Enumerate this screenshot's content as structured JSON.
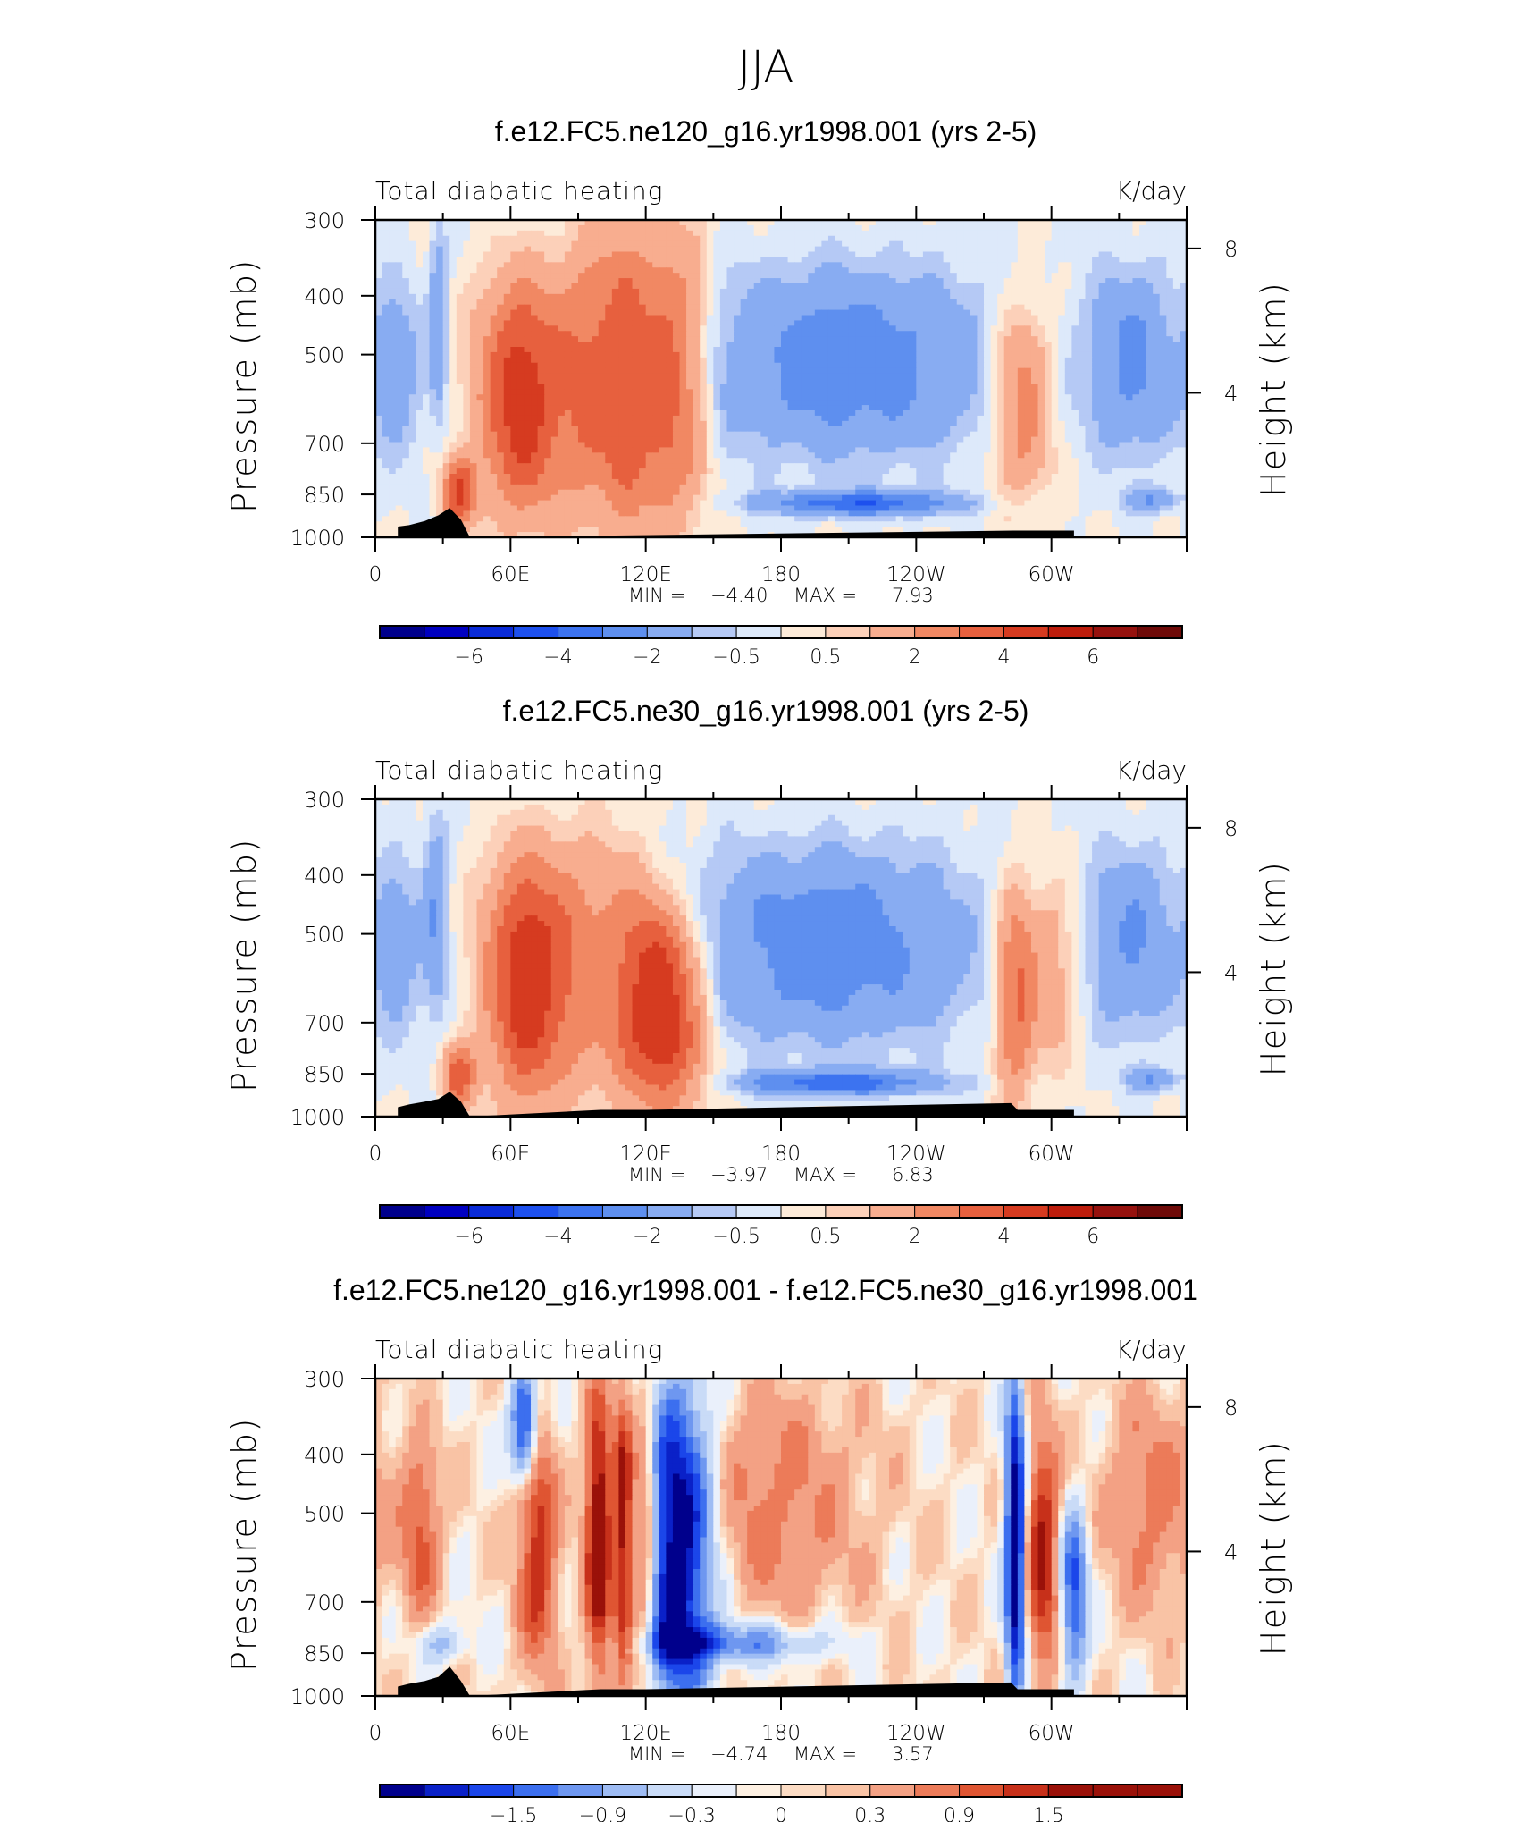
{
  "page": {
    "title": "JJA"
  },
  "colors": {
    "field_palette": [
      "#00008c",
      "#0000c0",
      "#0a2bd8",
      "#1d50ee",
      "#3c73f0",
      "#5e8fef",
      "#88acf2",
      "#b5c9f5",
      "#dde9fa",
      "#fdebd9",
      "#fcd0b9",
      "#f8ad8f",
      "#f18863",
      "#e7603e",
      "#d63b20",
      "#bd1d0c",
      "#96120e",
      "#6e0a08"
    ],
    "diff_palette": [
      "#00008c",
      "#0a21c8",
      "#1b46ea",
      "#3c6fef",
      "#6e97f0",
      "#9ebcf4",
      "#c9dbf7",
      "#eaf0fb",
      "#fdf0e2",
      "#fcdcc4",
      "#f9c3a5",
      "#f3a184",
      "#ec7b59",
      "#df5532",
      "#c7301a",
      "#9a1109"
    ],
    "terrain": "#000000"
  },
  "axes": {
    "x_tick_labels": [
      "0",
      "60E",
      "120E",
      "180",
      "120W",
      "60W"
    ],
    "y_left_labels": [
      "300",
      "400",
      "500",
      "700",
      "850",
      "1000"
    ],
    "y_right_labels": [
      "8",
      "4"
    ],
    "y_left_title": "Pressure (mb)",
    "y_right_title": "Height (km)"
  },
  "chart_data": [
    {
      "type": "heatmap",
      "title": "f.e12.FC5.ne120_g16.yr1998.001 (yrs 2-5)",
      "left_label": "Total diabatic heating",
      "right_label": "K/day",
      "stats": {
        "min_label": "MIN =",
        "min": "-4.40",
        "max_label": "MAX =",
        "max": "7.93"
      },
      "xlim": [
        0,
        360
      ],
      "ylim_mb": [
        1000,
        300
      ],
      "colorbar": {
        "levels": [
          -7,
          -6,
          -5,
          -4,
          -3,
          -2,
          -1,
          -0.5,
          0,
          0.5,
          1,
          2,
          3,
          4,
          5,
          6,
          7
        ],
        "tick_labels": [
          "-6",
          "-4",
          "-2",
          "-0.5",
          "0.5",
          "2",
          "4",
          "6"
        ],
        "tick_values": [
          -6,
          -4,
          -2,
          -0.5,
          0.5,
          2,
          4,
          6
        ]
      },
      "features": [
        {
          "lon": 65,
          "width": 14,
          "amp": 4.6,
          "top": 390,
          "bottom": 880
        },
        {
          "lon": 95,
          "width": 10,
          "amp": 2.6,
          "top": 330,
          "bottom": 900
        },
        {
          "lon": 112,
          "width": 8,
          "amp": 3.4,
          "top": 330,
          "bottom": 930
        },
        {
          "lon": 128,
          "width": 7,
          "amp": 3.0,
          "top": 330,
          "bottom": 930
        },
        {
          "lon": 140,
          "width": 7,
          "amp": 2.0,
          "top": 330,
          "bottom": 900
        },
        {
          "lon": 37,
          "width": 5,
          "amp": 3.8,
          "top": 780,
          "bottom": 920
        },
        {
          "lon": 28,
          "width": 3,
          "amp": -1.8,
          "top": 320,
          "bottom": 620
        },
        {
          "lon": 210,
          "width": 45,
          "amp": -2.6,
          "top": 380,
          "bottom": 700
        },
        {
          "lon": 215,
          "width": 30,
          "amp": -3.8,
          "top": 880,
          "bottom": 40
        },
        {
          "lon": 287,
          "width": 9,
          "amp": 2.8,
          "top": 430,
          "bottom": 820
        },
        {
          "lon": 336,
          "width": 14,
          "amp": -2.2,
          "top": 380,
          "bottom": 700
        },
        {
          "lon": 345,
          "width": 8,
          "amp": -2.0,
          "top": 870,
          "bottom": 40
        },
        {
          "lon": 10,
          "width": 8,
          "amp": -1.4,
          "top": 400,
          "bottom": 700
        }
      ],
      "terrain": [
        [
          10,
          960
        ],
        [
          15,
          955
        ],
        [
          22,
          940
        ],
        [
          28,
          920
        ],
        [
          33,
          895
        ],
        [
          38,
          935
        ],
        [
          42,
          1000
        ],
        [
          283,
          975
        ],
        [
          290,
          975
        ],
        [
          300,
          975
        ],
        [
          305,
          975
        ],
        [
          310,
          975
        ],
        [
          310,
          1000
        ]
      ]
    },
    {
      "type": "heatmap",
      "title": "f.e12.FC5.ne30_g16.yr1998.001 (yrs 2-5)",
      "left_label": "Total diabatic heating",
      "right_label": "K/day",
      "stats": {
        "min_label": "MIN =",
        "min": "-3.97",
        "max_label": "MAX =",
        "max": "6.83"
      },
      "xlim": [
        0,
        360
      ],
      "ylim_mb": [
        1000,
        300
      ],
      "colorbar": {
        "levels": [
          -7,
          -6,
          -5,
          -4,
          -3,
          -2,
          -1,
          -0.5,
          0,
          0.5,
          1,
          2,
          3,
          4,
          5,
          6,
          7
        ],
        "tick_labels": [
          "-6",
          "-4",
          "-2",
          "-0.5",
          "0.5",
          "2",
          "4",
          "6"
        ],
        "tick_values": [
          -6,
          -4,
          -2,
          -0.5,
          0.5,
          2,
          4,
          6
        ]
      },
      "features": [
        {
          "lon": 66,
          "width": 13,
          "amp": 4.4,
          "top": 390,
          "bottom": 900
        },
        {
          "lon": 95,
          "width": 16,
          "amp": 2.2,
          "top": 360,
          "bottom": 880
        },
        {
          "lon": 132,
          "width": 11,
          "amp": 4.0,
          "top": 480,
          "bottom": 940
        },
        {
          "lon": 118,
          "width": 10,
          "amp": 2.4,
          "top": 420,
          "bottom": 900
        },
        {
          "lon": 37,
          "width": 5,
          "amp": 3.4,
          "top": 800,
          "bottom": 920
        },
        {
          "lon": 27,
          "width": 4,
          "amp": -1.8,
          "top": 330,
          "bottom": 660
        },
        {
          "lon": 200,
          "width": 45,
          "amp": -2.6,
          "top": 380,
          "bottom": 720
        },
        {
          "lon": 205,
          "width": 30,
          "amp": -3.6,
          "top": 880,
          "bottom": 40
        },
        {
          "lon": 284,
          "width": 6,
          "amp": 3.2,
          "top": 430,
          "bottom": 900
        },
        {
          "lon": 300,
          "width": 8,
          "amp": 1.8,
          "top": 430,
          "bottom": 780
        },
        {
          "lon": 336,
          "width": 14,
          "amp": -2.0,
          "top": 380,
          "bottom": 700
        },
        {
          "lon": 345,
          "width": 8,
          "amp": -2.0,
          "top": 870,
          "bottom": 40
        },
        {
          "lon": 10,
          "width": 8,
          "amp": -1.4,
          "top": 400,
          "bottom": 700
        }
      ],
      "terrain": [
        [
          10,
          965
        ],
        [
          15,
          955
        ],
        [
          22,
          945
        ],
        [
          28,
          935
        ],
        [
          33,
          910
        ],
        [
          38,
          945
        ],
        [
          42,
          1000
        ],
        [
          100,
          975
        ],
        [
          105,
          975
        ],
        [
          115,
          975
        ],
        [
          120,
          975
        ],
        [
          282,
          950
        ],
        [
          285,
          975
        ],
        [
          300,
          975
        ],
        [
          310,
          975
        ],
        [
          310,
          1000
        ]
      ]
    },
    {
      "type": "heatmap",
      "title": "f.e12.FC5.ne120_g16.yr1998.001 - f.e12.FC5.ne30_g16.yr1998.001",
      "left_label": "Total diabatic heating",
      "right_label": "K/day",
      "stats": {
        "min_label": "MIN =",
        "min": "-4.74",
        "max_label": "MAX =",
        "max": "3.57"
      },
      "xlim": [
        0,
        360
      ],
      "ylim_mb": [
        1000,
        300
      ],
      "colorbar": {
        "levels": [
          -2.1,
          -1.8,
          -1.5,
          -1.2,
          -0.9,
          -0.6,
          -0.3,
          -0.1,
          0,
          0.1,
          0.3,
          0.6,
          0.9,
          1.2,
          1.5,
          1.8,
          2.1
        ],
        "tick_labels": [
          "-1.5",
          "-0.9",
          "-0.3",
          "0",
          "0.3",
          "0.9",
          "1.5"
        ],
        "tick_values": [
          -1.5,
          -0.9,
          -0.3,
          0,
          0.3,
          0.9,
          1.5
        ]
      },
      "features": [
        {
          "lon": 66,
          "width": 4,
          "amp": -2.0,
          "top": 310,
          "bottom": 420
        },
        {
          "lon": 72,
          "width": 6,
          "amp": 1.4,
          "top": 380,
          "bottom": 850
        },
        {
          "lon": 99,
          "width": 4,
          "amp": 2.0,
          "top": 330,
          "bottom": 900
        },
        {
          "lon": 110,
          "width": 3,
          "amp": 1.8,
          "top": 330,
          "bottom": 900
        },
        {
          "lon": 120,
          "width": 4,
          "amp": 1.4,
          "top": 330,
          "bottom": 920
        },
        {
          "lon": 134,
          "width": 11,
          "amp": -2.6,
          "top": 320,
          "bottom": 980
        },
        {
          "lon": 158,
          "width": 28,
          "amp": -1.2,
          "top": 820,
          "bottom": 60
        },
        {
          "lon": 176,
          "width": 28,
          "amp": 0.7,
          "top": 330,
          "bottom": 700
        },
        {
          "lon": 284,
          "width": 3,
          "amp": -2.6,
          "top": 320,
          "bottom": 980
        },
        {
          "lon": 296,
          "width": 5,
          "amp": 1.5,
          "top": 380,
          "bottom": 880
        },
        {
          "lon": 310,
          "width": 4,
          "amp": -1.6,
          "top": 520,
          "bottom": 900
        },
        {
          "lon": 20,
          "width": 6,
          "amp": 1.0,
          "top": 400,
          "bottom": 700
        },
        {
          "lon": 30,
          "width": 8,
          "amp": -0.7,
          "top": 820,
          "bottom": 60
        },
        {
          "lon": 345,
          "width": 14,
          "amp": 0.7,
          "top": 330,
          "bottom": 700
        }
      ],
      "terrain": [
        [
          10,
          965
        ],
        [
          15,
          955
        ],
        [
          22,
          945
        ],
        [
          28,
          930
        ],
        [
          33,
          895
        ],
        [
          38,
          945
        ],
        [
          42,
          1000
        ],
        [
          100,
          975
        ],
        [
          105,
          975
        ],
        [
          115,
          975
        ],
        [
          120,
          975
        ],
        [
          282,
          950
        ],
        [
          285,
          975
        ],
        [
          300,
          975
        ],
        [
          310,
          975
        ],
        [
          310,
          1000
        ]
      ]
    }
  ]
}
